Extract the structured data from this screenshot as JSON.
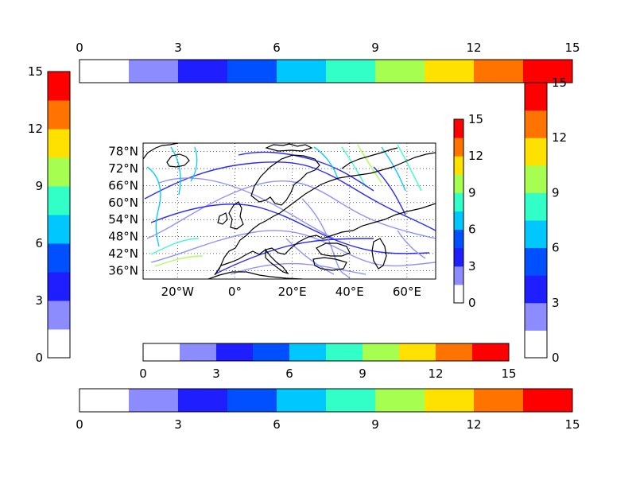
{
  "colors": [
    "#ffffff",
    "#8c8cff",
    "#1e1eff",
    "#0050ff",
    "#00c8ff",
    "#32ffc8",
    "#a6ff50",
    "#ffe100",
    "#ff7300",
    "#ff0000"
  ],
  "colorbar_ticks": [
    "0",
    "3",
    "6",
    "9",
    "12",
    "15"
  ],
  "map": {
    "lat_labels": [
      "78°N",
      "72°N",
      "66°N",
      "60°N",
      "54°N",
      "48°N",
      "42°N",
      "36°N"
    ],
    "lon_labels": [
      "20°W",
      "0°",
      "20°E",
      "40°E",
      "60°E"
    ]
  },
  "chart_data": {
    "type": "streamplot-map",
    "region": "Europe / North Atlantic",
    "lon_range": [
      -32,
      70
    ],
    "lat_range": [
      33,
      81
    ],
    "color_levels": [
      0,
      1.5,
      3,
      4.5,
      6,
      7.5,
      9,
      10.5,
      12,
      13.5,
      15
    ],
    "colorbars": [
      {
        "orientation": "horizontal",
        "placement": "top",
        "ticks": [
          0,
          3,
          6,
          9,
          12,
          15
        ]
      },
      {
        "orientation": "vertical",
        "placement": "left",
        "ticks": [
          0,
          3,
          6,
          9,
          12,
          15
        ]
      },
      {
        "orientation": "vertical",
        "placement": "right",
        "ticks": [
          0,
          3,
          6,
          9,
          12,
          15
        ]
      },
      {
        "orientation": "horizontal",
        "placement": "below-map",
        "ticks": [
          0,
          3,
          6,
          9,
          12,
          15
        ]
      },
      {
        "orientation": "horizontal",
        "placement": "bottom",
        "ticks": [
          0,
          3,
          6,
          9,
          12,
          15
        ]
      },
      {
        "orientation": "vertical",
        "placement": "map-inset-right",
        "ticks": [
          0,
          3,
          6,
          9,
          12,
          15
        ]
      }
    ],
    "grid": true
  }
}
